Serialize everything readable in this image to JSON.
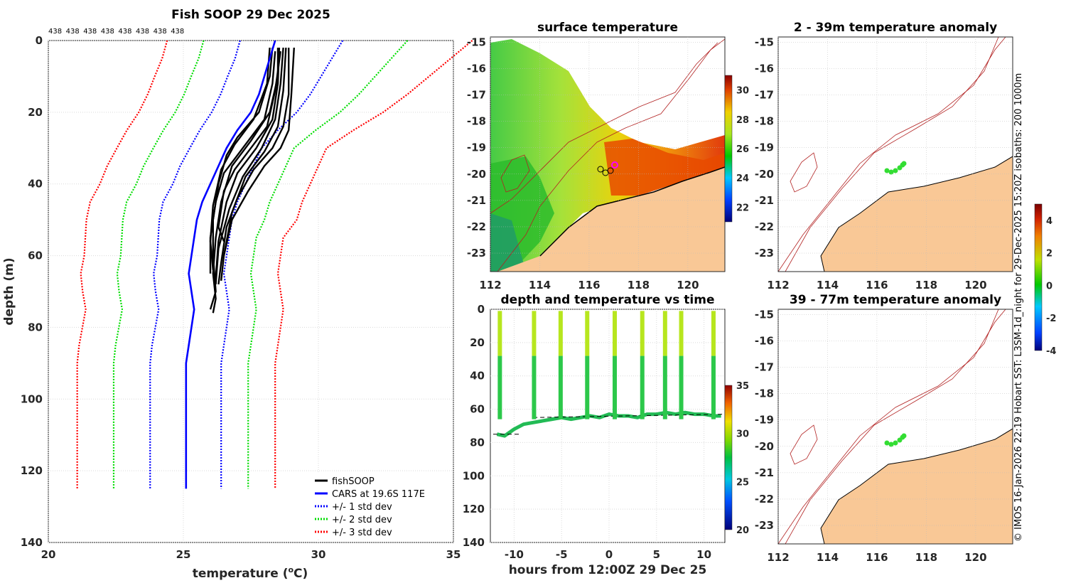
{
  "chart_data": [
    {
      "id": "profile",
      "type": "line",
      "title": "Fish SOOP 29 Dec 2025",
      "xlabel": "temperature (oC)",
      "xlabel_main": "temperature (",
      "xlabel_sup": "o",
      "xlabel_tail": "C)",
      "ylabel": "depth (m)",
      "xlim": [
        20,
        35
      ],
      "ylim": [
        140,
        0
      ],
      "xticks": [
        20,
        25,
        30,
        35
      ],
      "yticks": [
        0,
        20,
        40,
        60,
        80,
        100,
        120,
        140
      ],
      "count_label": "438",
      "count_repeats": 8,
      "legend": [
        "fishSOOP",
        "CARS at 19.6S 117E",
        "+/- 1 std dev",
        "+/- 2 std dev",
        "+/- 3 std dev"
      ],
      "cars_mean": [
        [
          28.4,
          0
        ],
        [
          28.2,
          5
        ],
        [
          28.0,
          10
        ],
        [
          27.8,
          15
        ],
        [
          27.5,
          20
        ],
        [
          27.0,
          25
        ],
        [
          26.6,
          30
        ],
        [
          26.3,
          35
        ],
        [
          26.0,
          40
        ],
        [
          25.7,
          45
        ],
        [
          25.5,
          50
        ],
        [
          25.4,
          55
        ],
        [
          25.3,
          60
        ],
        [
          25.2,
          65
        ],
        [
          25.3,
          70
        ],
        [
          25.4,
          75
        ],
        [
          25.2,
          85
        ],
        [
          25.1,
          90
        ],
        [
          25.1,
          100
        ],
        [
          25.1,
          110
        ],
        [
          25.1,
          125
        ]
      ],
      "std_offsets": [
        1.3,
        2.5,
        3.7
      ],
      "std_lower_extra": [
        [
          0,
          0
        ],
        [
          20,
          0
        ],
        [
          30,
          0
        ],
        [
          60,
          0
        ],
        [
          70,
          0
        ],
        [
          80,
          0
        ],
        [
          90,
          0
        ],
        [
          125,
          0
        ]
      ],
      "profiles": [
        [
          [
            28.3,
            2
          ],
          [
            28.2,
            10
          ],
          [
            27.8,
            20
          ],
          [
            27.0,
            27
          ],
          [
            26.6,
            32
          ],
          [
            26.3,
            40
          ],
          [
            26.1,
            50
          ],
          [
            26.1,
            60
          ],
          [
            26.2,
            70
          ],
          [
            26.0,
            75
          ]
        ],
        [
          [
            28.5,
            2
          ],
          [
            28.5,
            10
          ],
          [
            28.2,
            20
          ],
          [
            27.5,
            28
          ],
          [
            26.8,
            35
          ],
          [
            26.4,
            45
          ],
          [
            26.2,
            55
          ],
          [
            26.1,
            65
          ],
          [
            26.2,
            72
          ],
          [
            26.1,
            76
          ]
        ],
        [
          [
            28.7,
            2
          ],
          [
            28.6,
            12
          ],
          [
            28.4,
            22
          ],
          [
            27.9,
            30
          ],
          [
            27.2,
            38
          ],
          [
            26.7,
            47
          ],
          [
            26.3,
            58
          ],
          [
            26.2,
            68
          ]
        ],
        [
          [
            28.9,
            2
          ],
          [
            28.9,
            15
          ],
          [
            28.7,
            24
          ],
          [
            28.3,
            30
          ],
          [
            27.6,
            36
          ],
          [
            27.0,
            44
          ],
          [
            26.6,
            52
          ],
          [
            26.4,
            62
          ],
          [
            26.3,
            68
          ]
        ],
        [
          [
            29.1,
            2
          ],
          [
            29.0,
            15
          ],
          [
            28.9,
            25
          ],
          [
            28.6,
            30
          ],
          [
            28.0,
            35
          ],
          [
            27.4,
            42
          ],
          [
            26.8,
            50
          ],
          [
            26.5,
            60
          ]
        ],
        [
          [
            28.4,
            3
          ],
          [
            28.3,
            12
          ],
          [
            28.0,
            22
          ],
          [
            27.2,
            30
          ],
          [
            26.5,
            37
          ],
          [
            26.2,
            45
          ],
          [
            26.0,
            55
          ],
          [
            26.0,
            65
          ]
        ],
        [
          [
            28.6,
            3
          ],
          [
            28.4,
            14
          ],
          [
            28.1,
            24
          ],
          [
            27.5,
            30
          ],
          [
            26.9,
            36
          ],
          [
            26.5,
            42
          ],
          [
            26.3,
            52
          ],
          [
            26.5,
            56
          ]
        ],
        [
          [
            28.8,
            2
          ],
          [
            28.7,
            14
          ],
          [
            28.5,
            24
          ],
          [
            28.0,
            31
          ],
          [
            27.3,
            38
          ],
          [
            26.8,
            48
          ],
          [
            26.5,
            60
          ],
          [
            26.4,
            67
          ]
        ],
        [
          [
            28.2,
            2
          ],
          [
            28.1,
            12
          ],
          [
            27.6,
            22
          ],
          [
            26.9,
            29
          ],
          [
            26.4,
            36
          ],
          [
            26.1,
            46
          ],
          [
            26.0,
            56
          ],
          [
            26.1,
            64
          ]
        ],
        [
          [
            28.55,
            2
          ],
          [
            28.5,
            12
          ],
          [
            28.3,
            22
          ],
          [
            27.7,
            30
          ],
          [
            27.0,
            37
          ],
          [
            26.6,
            45
          ],
          [
            26.3,
            56
          ],
          [
            26.2,
            66
          ]
        ]
      ]
    },
    {
      "id": "depth-time",
      "type": "scatter",
      "title": "depth and temperature vs time",
      "xlabel": "hours from 12:00Z 29 Dec 25",
      "xlim": [
        -12.5,
        12.2
      ],
      "ylim": [
        140,
        0
      ],
      "xticks": [
        -10,
        -5,
        0,
        5,
        10
      ],
      "yticks": [
        0,
        20,
        40,
        60,
        80,
        100,
        120,
        140
      ],
      "colorbar": {
        "min": 20,
        "max": 35,
        "ticks": [
          20,
          25,
          30,
          35
        ]
      },
      "casts_hours": [
        -11.5,
        -7.9,
        -5.1,
        -2.3,
        0.6,
        3.5,
        5.9,
        7.6,
        11.0
      ],
      "bottom_depth_hours": [
        [
          -11.8,
          75
        ],
        [
          -11.0,
          76
        ],
        [
          -10.0,
          72
        ],
        [
          -9.0,
          69
        ],
        [
          -8.0,
          68
        ],
        [
          -7.0,
          67
        ],
        [
          -6.0,
          66
        ],
        [
          -5.0,
          65
        ],
        [
          -4.0,
          66
        ],
        [
          -3.0,
          65
        ],
        [
          -2.0,
          64
        ],
        [
          -1.0,
          65
        ],
        [
          0.0,
          63
        ],
        [
          1.0,
          64
        ],
        [
          2.0,
          64
        ],
        [
          3.0,
          65
        ],
        [
          4.0,
          63
        ],
        [
          5.0,
          63
        ],
        [
          6.0,
          62
        ],
        [
          7.0,
          63
        ],
        [
          8.0,
          62
        ],
        [
          9.0,
          63
        ],
        [
          10.0,
          63
        ],
        [
          11.0,
          64
        ],
        [
          11.8,
          64
        ]
      ]
    },
    {
      "id": "sst-map",
      "type": "heatmap",
      "title": "surface temperature",
      "xlim": [
        112,
        121.5
      ],
      "ylim": [
        -23.7,
        -14.8
      ],
      "xticks": [
        112,
        114,
        116,
        118,
        120
      ],
      "yticks": [
        -15,
        -16,
        -17,
        -18,
        -19,
        -20,
        -21,
        -22,
        -23
      ],
      "colorbar": {
        "min": 21,
        "max": 31,
        "ticks": [
          22,
          24,
          26,
          28,
          30
        ]
      }
    },
    {
      "id": "anom-2-39",
      "type": "heatmap",
      "title": "2 - 39m temperature anomaly",
      "xlim": [
        112,
        121.5
      ],
      "ylim": [
        -23.7,
        -14.8
      ],
      "xticks": [
        112,
        114,
        116,
        118,
        120
      ],
      "yticks": [
        -15,
        -16,
        -17,
        -18,
        -19,
        -20,
        -21,
        -22,
        -23
      ]
    },
    {
      "id": "anom-39-77",
      "type": "heatmap",
      "title": "39 - 77m temperature anomaly",
      "xlim": [
        112,
        121.5
      ],
      "ylim": [
        -23.7,
        -14.8
      ],
      "xticks": [
        112,
        114,
        116,
        118,
        120
      ],
      "yticks": [
        -15,
        -16,
        -17,
        -18,
        -19,
        -20,
        -21,
        -22,
        -23
      ],
      "colorbar": {
        "min": -4,
        "max": 5,
        "ticks": [
          -4,
          -2,
          0,
          2,
          4
        ]
      }
    }
  ],
  "credit": "© IMOS 16-Jan-2026 22:19 Hobart SST: L3SM-1d_night for 29-Dec-2025 15:20Z isobaths: 200  1000m",
  "colors": {
    "black": "#000000",
    "cars": "#0000ff",
    "std1": "#0000ff",
    "std2": "#00dd00",
    "std3": "#ff0000",
    "land": "#f9c896",
    "isobath": "#b22222"
  }
}
